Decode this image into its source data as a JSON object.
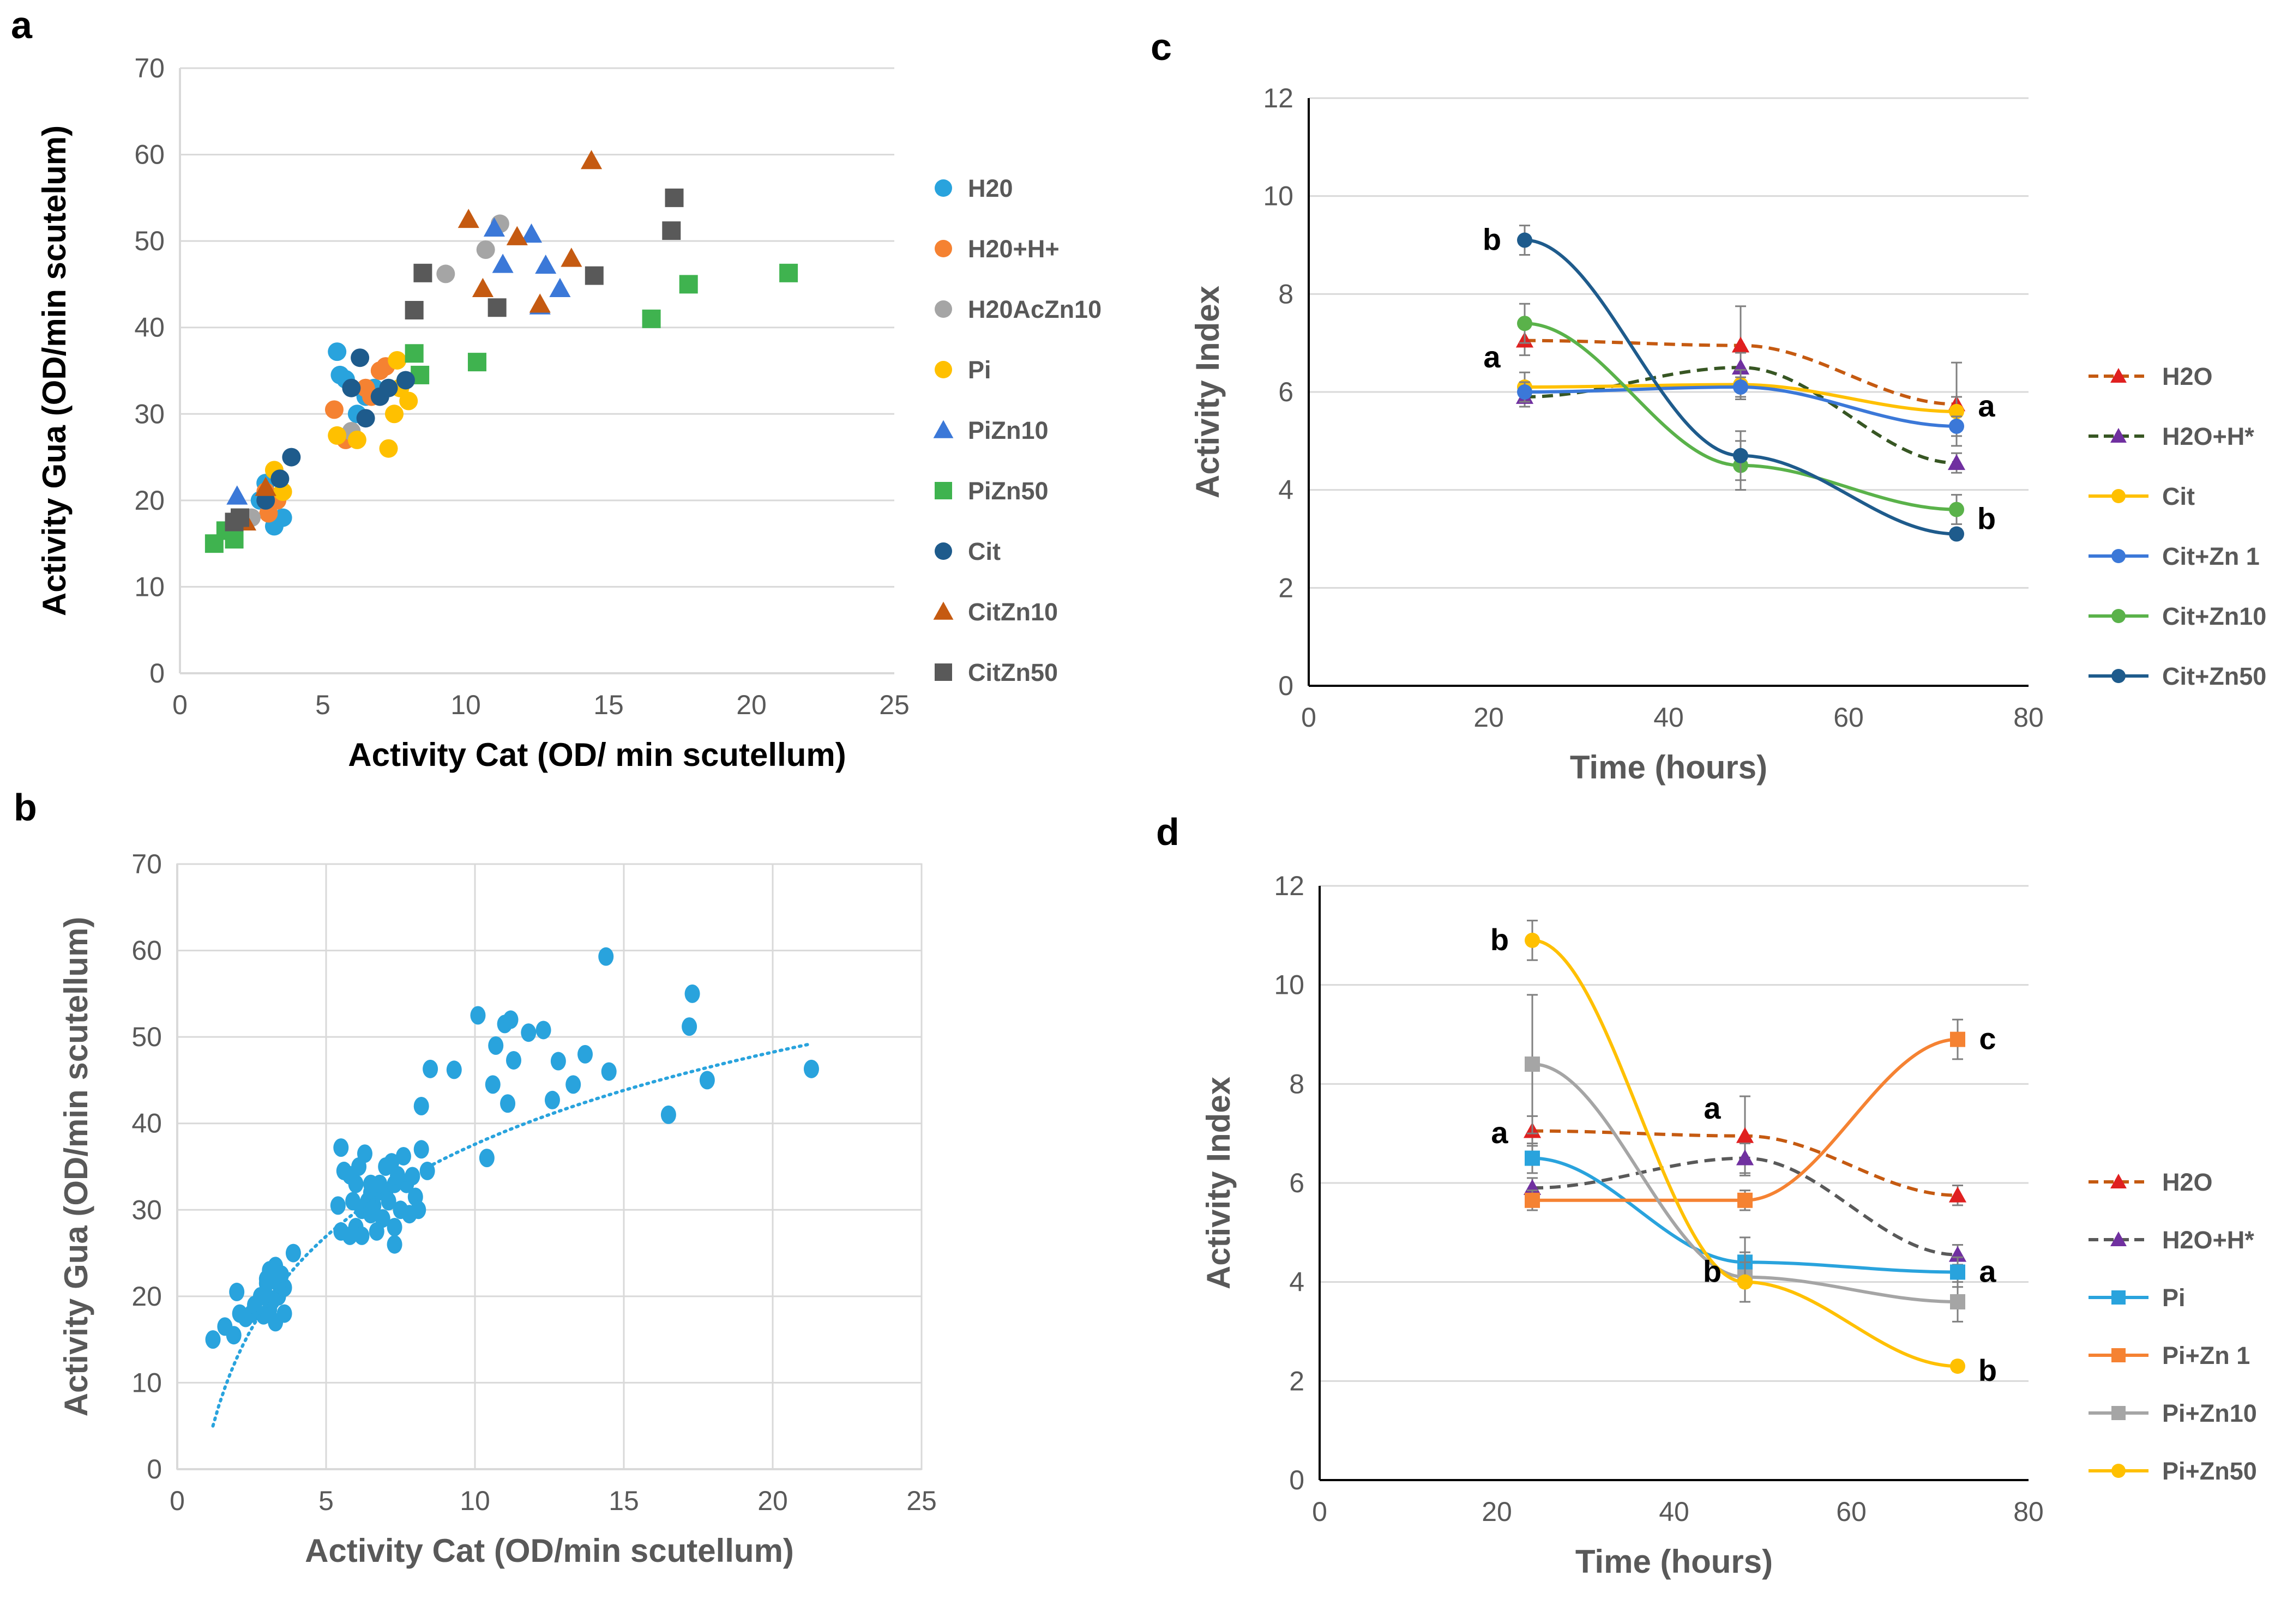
{
  "figure": {
    "panels": {
      "a": "a",
      "b": "b",
      "c": "c",
      "d": "d"
    }
  },
  "chart_data": [
    {
      "id": "a",
      "type": "scatter",
      "xlabel": "Activity Cat (OD/ min scutellum)",
      "ylabel": "Activity Gua (OD/min scutelum)",
      "xlim": [
        0,
        25
      ],
      "ylim": [
        0,
        70
      ],
      "xticks": [
        0,
        5,
        10,
        15,
        20,
        25
      ],
      "yticks": [
        0,
        10,
        20,
        30,
        40,
        50,
        60,
        70
      ],
      "grid": true,
      "legend": "right",
      "series": [
        {
          "name": "H20",
          "marker": "circle",
          "color": "#29a3dd",
          "points": [
            [
              3.3,
              17
            ],
            [
              3.6,
              18
            ],
            [
              5.5,
              37.2
            ],
            [
              5.8,
              34
            ],
            [
              6.2,
              30
            ],
            [
              6.5,
              32
            ],
            [
              5.6,
              34.5
            ],
            [
              6.8,
              33
            ],
            [
              3.0,
              22
            ],
            [
              2.8,
              20
            ]
          ]
        },
        {
          "name": "H20+H+",
          "marker": "circle",
          "color": "#f58232",
          "points": [
            [
              3.1,
              18.5
            ],
            [
              3.4,
              20
            ],
            [
              5.4,
              30.5
            ],
            [
              5.8,
              27
            ],
            [
              6.7,
              32
            ],
            [
              7.0,
              35
            ],
            [
              7.2,
              35.5
            ],
            [
              6.5,
              33
            ],
            [
              3.0,
              21
            ]
          ]
        },
        {
          "name": "H20AcZn10",
          "marker": "circle",
          "color": "#a5a5a5",
          "points": [
            [
              9.3,
              46.2
            ],
            [
              10.7,
              49
            ],
            [
              11.2,
              52
            ],
            [
              6.0,
              28
            ],
            [
              2.5,
              18
            ]
          ]
        },
        {
          "name": "Pi",
          "marker": "circle",
          "color": "#ffc000",
          "points": [
            [
              3.3,
              23.5
            ],
            [
              3.6,
              21
            ],
            [
              5.5,
              27.5
            ],
            [
              6.2,
              27
            ],
            [
              7.3,
              26
            ],
            [
              7.5,
              30
            ],
            [
              7.6,
              36.2
            ],
            [
              7.7,
              33
            ],
            [
              8.0,
              31.5
            ]
          ]
        },
        {
          "name": "PiZn10",
          "marker": "triangle",
          "color": "#3b78d8",
          "points": [
            [
              2.0,
              20.5
            ],
            [
              11.0,
              51.5
            ],
            [
              11.3,
              47.3
            ],
            [
              12.3,
              50.8
            ],
            [
              12.8,
              47.2
            ],
            [
              13.3,
              44.5
            ],
            [
              12.6,
              42.5
            ]
          ]
        },
        {
          "name": "PiZn50",
          "marker": "square",
          "color": "#3fb34f",
          "points": [
            [
              1.2,
              15
            ],
            [
              1.6,
              16.5
            ],
            [
              1.9,
              15.5
            ],
            [
              8.2,
              37
            ],
            [
              8.4,
              34.5
            ],
            [
              10.4,
              36
            ],
            [
              16.5,
              41
            ],
            [
              17.8,
              45
            ],
            [
              21.3,
              46.3
            ]
          ]
        },
        {
          "name": "Cit",
          "marker": "circle",
          "color": "#1e5b8c",
          "points": [
            [
              3.0,
              20
            ],
            [
              3.5,
              22.5
            ],
            [
              3.9,
              25
            ],
            [
              6.0,
              33
            ],
            [
              6.3,
              36.5
            ],
            [
              6.5,
              29.5
            ],
            [
              7.0,
              32
            ],
            [
              7.3,
              33
            ],
            [
              7.9,
              33.9
            ]
          ]
        },
        {
          "name": "CitZn10",
          "marker": "triangle",
          "color": "#c55a11",
          "points": [
            [
              2.3,
              17.5
            ],
            [
              3.0,
              21.5
            ],
            [
              10.1,
              52.5
            ],
            [
              10.6,
              44.5
            ],
            [
              11.8,
              50.5
            ],
            [
              12.6,
              42.7
            ],
            [
              13.7,
              48
            ],
            [
              14.4,
              59.3
            ]
          ]
        },
        {
          "name": "CitZn50",
          "marker": "square",
          "color": "#595959",
          "points": [
            [
              1.9,
              17.5
            ],
            [
              2.1,
              18
            ],
            [
              8.2,
              42
            ],
            [
              8.5,
              46.3
            ],
            [
              11.1,
              42.3
            ],
            [
              14.5,
              46
            ],
            [
              17.2,
              51.2
            ],
            [
              17.3,
              55
            ]
          ]
        }
      ]
    },
    {
      "id": "b",
      "type": "scatter",
      "xlabel": "Activity Cat (OD/min scutellum)",
      "ylabel": "Activity Gua (OD/min scutellum)",
      "xlim": [
        0,
        25
      ],
      "ylim": [
        0,
        70
      ],
      "xticks": [
        0,
        5,
        10,
        15,
        20,
        25
      ],
      "yticks": [
        0,
        10,
        20,
        30,
        40,
        50,
        60,
        70
      ],
      "grid": true,
      "trendline": "logarithmic (dotted)",
      "color": "#29a3dd",
      "points": [
        [
          1.2,
          15
        ],
        [
          1.6,
          16.5
        ],
        [
          1.9,
          15.5
        ],
        [
          2.1,
          18
        ],
        [
          2.3,
          17.5
        ],
        [
          2.5,
          18
        ],
        [
          2.0,
          20.5
        ],
        [
          2.8,
          20
        ],
        [
          3.0,
          22
        ],
        [
          3.0,
          20
        ],
        [
          3.1,
          18.5
        ],
        [
          3.3,
          17
        ],
        [
          3.3,
          23.5
        ],
        [
          3.4,
          20
        ],
        [
          3.5,
          22.5
        ],
        [
          3.6,
          18
        ],
        [
          3.6,
          21
        ],
        [
          3.9,
          25
        ],
        [
          3.0,
          21.5
        ],
        [
          2.6,
          19
        ],
        [
          3.2,
          19.5
        ],
        [
          3.4,
          21.5
        ],
        [
          3.1,
          23
        ],
        [
          2.9,
          17.8
        ],
        [
          5.4,
          30.5
        ],
        [
          5.5,
          37.2
        ],
        [
          5.5,
          27.5
        ],
        [
          5.6,
          34.5
        ],
        [
          5.8,
          34
        ],
        [
          5.8,
          27
        ],
        [
          6.0,
          33
        ],
        [
          6.0,
          28
        ],
        [
          6.2,
          30
        ],
        [
          6.2,
          27
        ],
        [
          6.3,
          36.5
        ],
        [
          6.5,
          32
        ],
        [
          6.5,
          29.5
        ],
        [
          6.5,
          33
        ],
        [
          6.7,
          32
        ],
        [
          6.8,
          33
        ],
        [
          7.0,
          35
        ],
        [
          7.0,
          32
        ],
        [
          7.2,
          35.5
        ],
        [
          7.3,
          26
        ],
        [
          7.3,
          33
        ],
        [
          7.5,
          30
        ],
        [
          7.6,
          36.2
        ],
        [
          7.7,
          33
        ],
        [
          7.9,
          33.9
        ],
        [
          8.0,
          31.5
        ],
        [
          8.2,
          37
        ],
        [
          8.4,
          34.5
        ],
        [
          8.2,
          42
        ],
        [
          6.6,
          30.5
        ],
        [
          6.9,
          29
        ],
        [
          7.1,
          31
        ],
        [
          7.4,
          34
        ],
        [
          6.4,
          31
        ],
        [
          7.8,
          29.5
        ],
        [
          8.1,
          30
        ],
        [
          6.1,
          35
        ],
        [
          5.9,
          31
        ],
        [
          7.3,
          28
        ],
        [
          6.7,
          27.5
        ],
        [
          8.5,
          46.3
        ],
        [
          9.3,
          46.2
        ],
        [
          10.1,
          52.5
        ],
        [
          10.4,
          36
        ],
        [
          10.6,
          44.5
        ],
        [
          10.7,
          49
        ],
        [
          11.0,
          51.5
        ],
        [
          11.1,
          42.3
        ],
        [
          11.2,
          52
        ],
        [
          11.3,
          47.3
        ],
        [
          11.8,
          50.5
        ],
        [
          12.3,
          50.8
        ],
        [
          12.6,
          42.7
        ],
        [
          12.8,
          47.2
        ],
        [
          13.3,
          44.5
        ],
        [
          13.7,
          48
        ],
        [
          14.4,
          59.3
        ],
        [
          14.5,
          46
        ],
        [
          16.5,
          41
        ],
        [
          17.2,
          51.2
        ],
        [
          17.3,
          55
        ],
        [
          17.8,
          45
        ],
        [
          21.3,
          46.3
        ]
      ]
    },
    {
      "id": "c",
      "type": "line",
      "xlabel": "Time (hours)",
      "ylabel": "Activity Index",
      "xlim": [
        0,
        80
      ],
      "ylim": [
        0,
        12
      ],
      "xticks": [
        0,
        20,
        40,
        60,
        80
      ],
      "yticks": [
        0,
        2,
        4,
        6,
        8,
        10,
        12
      ],
      "grid": true,
      "legend": "right",
      "x": [
        24,
        48,
        72
      ],
      "series": [
        {
          "name": "H2O",
          "values": [
            7.05,
            6.95,
            5.75
          ],
          "color": "#c55a11",
          "marker": "triangle",
          "dash": true,
          "color_marker": "#e02020",
          "err": [
            0.3,
            0.8,
            0.85
          ]
        },
        {
          "name": "H2O+H*",
          "values": [
            5.9,
            6.5,
            4.55
          ],
          "color": "#375623",
          "marker": "triangle",
          "dash": true,
          "color_marker": "#7030a0",
          "err": [
            0.2,
            0.3,
            0.2
          ]
        },
        {
          "name": "Cit",
          "values": [
            6.1,
            6.15,
            5.6
          ],
          "color": "#ffc000",
          "marker": "circle",
          "err": [
            0.3,
            0.3,
            0.3
          ]
        },
        {
          "name": "Cit+Zn 1",
          "values": [
            6.0,
            6.1,
            5.3
          ],
          "color": "#3b78d8",
          "marker": "circle",
          "err": [
            0.2,
            0.2,
            0.2
          ]
        },
        {
          "name": "Cit+Zn10",
          "values": [
            7.4,
            4.5,
            3.6
          ],
          "color": "#5ab24a",
          "marker": "circle",
          "err": [
            0.4,
            0.5,
            0.3
          ]
        },
        {
          "name": "Cit+Zn50",
          "values": [
            9.1,
            4.7,
            3.1
          ],
          "color": "#1e5b8c",
          "marker": "circle",
          "err": [
            0.3,
            0.5,
            0.1
          ]
        }
      ],
      "annotations": [
        {
          "text": "b",
          "x": 24,
          "y": 9.1,
          "pos": "left"
        },
        {
          "text": "a",
          "x": 24,
          "y": 6.7,
          "pos": "left"
        },
        {
          "text": "a",
          "x": 72,
          "y": 5.7,
          "pos": "right"
        },
        {
          "text": "b",
          "x": 72,
          "y": 3.4,
          "pos": "right"
        }
      ]
    },
    {
      "id": "d",
      "type": "line",
      "xlabel": "Time (hours)",
      "ylabel": "Activity Index",
      "xlim": [
        0,
        80
      ],
      "ylim": [
        0,
        12
      ],
      "xticks": [
        0,
        20,
        40,
        60,
        80
      ],
      "yticks": [
        0,
        2,
        4,
        6,
        8,
        10,
        12
      ],
      "grid": true,
      "legend": "right",
      "x": [
        24,
        48,
        72
      ],
      "series": [
        {
          "name": "H2O",
          "values": [
            7.05,
            6.95,
            5.75
          ],
          "color": "#c55a11",
          "marker": "triangle",
          "dash": true,
          "color_marker": "#e02020",
          "err": [
            0.3,
            0.8,
            0.2
          ]
        },
        {
          "name": "H2O+H*",
          "values": [
            5.9,
            6.5,
            4.55
          ],
          "color": "#595959",
          "marker": "triangle",
          "dash": true,
          "color_marker": "#7030a0",
          "err": [
            0.2,
            0.3,
            0.2
          ]
        },
        {
          "name": "Pi",
          "values": [
            6.5,
            4.4,
            4.2
          ],
          "color": "#29a3dd",
          "marker": "square",
          "err": [
            0.3,
            0.5,
            0.3
          ]
        },
        {
          "name": "Pi+Zn 1",
          "values": [
            5.65,
            5.65,
            8.9
          ],
          "color": "#f58232",
          "marker": "square",
          "err": [
            0.2,
            0.2,
            0.4
          ]
        },
        {
          "name": "Pi+Zn10",
          "values": [
            8.4,
            4.1,
            3.6
          ],
          "color": "#a5a5a5",
          "marker": "square",
          "err": [
            1.4,
            0.5,
            0.4
          ]
        },
        {
          "name": "Pi+Zn50",
          "values": [
            10.9,
            4.0,
            2.3
          ],
          "color": "#ffc000",
          "marker": "circle",
          "err": [
            0.4,
            0.4,
            0.1
          ]
        }
      ],
      "annotations": [
        {
          "text": "b",
          "x": 24,
          "y": 10.9,
          "pos": "left"
        },
        {
          "text": "a",
          "x": 24,
          "y": 7.0,
          "pos": "left"
        },
        {
          "text": "a",
          "x": 48,
          "y": 7.5,
          "pos": "left"
        },
        {
          "text": "b",
          "x": 48,
          "y": 4.2,
          "pos": "left"
        },
        {
          "text": "c",
          "x": 72,
          "y": 8.9,
          "pos": "right"
        },
        {
          "text": "a",
          "x": 72,
          "y": 4.2,
          "pos": "right"
        },
        {
          "text": "b",
          "x": 72,
          "y": 2.2,
          "pos": "right"
        }
      ]
    }
  ]
}
